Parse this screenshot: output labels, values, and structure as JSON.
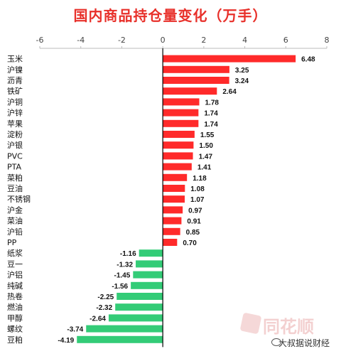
{
  "title": "国内商品持仓量变化（万手）",
  "colors": {
    "positive": "#ff2a2a",
    "negative": "#33cc77",
    "title": "#e8302a",
    "axis": "#000000"
  },
  "chart_data": {
    "type": "bar",
    "orientation": "horizontal",
    "title": "国内商品持仓量变化（万手）",
    "xlim": [
      -6,
      8
    ],
    "xticks": [
      -6,
      -4,
      -2,
      0,
      2,
      4,
      6,
      8
    ],
    "xtick_labels": [
      "-6",
      "-4",
      "-2",
      "0",
      "2",
      "4",
      "6",
      "8"
    ],
    "grid": false,
    "categories": [
      "玉米",
      "沪镍",
      "沥青",
      "铁矿",
      "沪铜",
      "沪锌",
      "苹果",
      "淀粉",
      "沪银",
      "PVC",
      "PTA",
      "菜粕",
      "豆油",
      "不锈钢",
      "沪金",
      "菜油",
      "沪铅",
      "PP",
      "纸浆",
      "豆一",
      "沪铝",
      "纯碱",
      "热卷",
      "燃油",
      "甲醇",
      "螺纹",
      "豆粕"
    ],
    "values": [
      6.48,
      3.25,
      3.24,
      2.64,
      1.78,
      1.74,
      1.74,
      1.55,
      1.5,
      1.47,
      1.41,
      1.18,
      1.08,
      1.07,
      0.97,
      0.91,
      0.85,
      0.7,
      -1.16,
      -1.32,
      -1.45,
      -1.56,
      -2.25,
      -2.32,
      -2.64,
      -3.74,
      -4.19
    ],
    "value_labels": [
      "6.48",
      "3.25",
      "3.24",
      "2.64",
      "1.78",
      "1.74",
      "1.74",
      "1.55",
      "1.50",
      "1.47",
      "1.41",
      "1.18",
      "1.08",
      "1.07",
      "0.97",
      "0.91",
      "0.85",
      "0.70",
      "-1.16",
      "-1.32",
      "-1.45",
      "-1.56",
      "-2.25",
      "-2.32",
      "-2.64",
      "-3.74",
      "-4.19"
    ]
  },
  "watermark": {
    "logo_text": "同花顺",
    "source_text": "大叔据说财经"
  }
}
